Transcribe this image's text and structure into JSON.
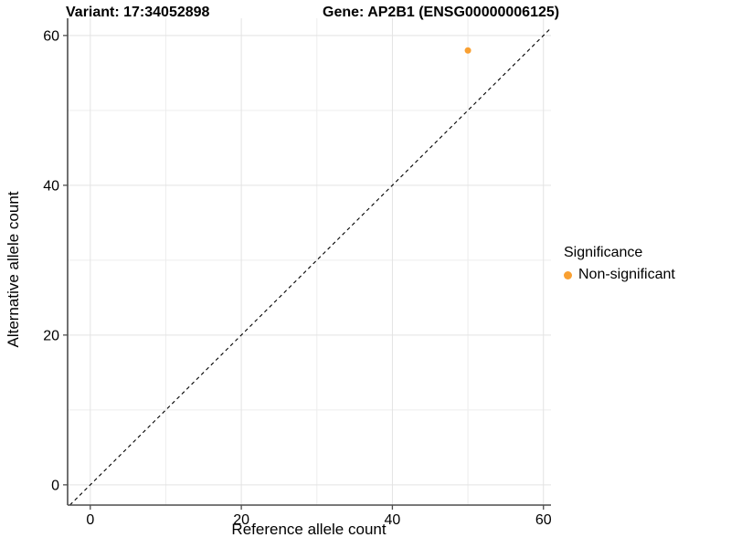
{
  "figure": {
    "title_left": "Variant: 17:34052898",
    "title_right": "Gene: AP2B1 (ENSG00000006125)"
  },
  "chart_data": {
    "type": "scatter",
    "title": "Variant: 17:34052898 — Gene: AP2B1 (ENSG00000006125)",
    "xlabel": "Reference allele count",
    "ylabel": "Alternative allele count",
    "xlim": [
      -3,
      61
    ],
    "ylim": [
      -2.7,
      62.3
    ],
    "x_ticks": [
      0,
      20,
      40,
      60
    ],
    "y_ticks": [
      0,
      20,
      40,
      60
    ],
    "x_minor_ticks": [
      10,
      30,
      50
    ],
    "y_minor_ticks": [
      10,
      30,
      50
    ],
    "grid": "major and minor, light gray on white",
    "series": [
      {
        "name": "Non-significant",
        "color": "#F9A032",
        "points": [
          {
            "x": 50,
            "y": 58
          }
        ]
      }
    ],
    "reference_line": {
      "equation": "y = x",
      "style": "dashed",
      "color": "#000000"
    },
    "legend": {
      "title": "Significance",
      "position": "right",
      "entries": [
        {
          "label": "Non-significant",
          "color": "#F9A032"
        }
      ]
    }
  },
  "colors": {
    "background": "#ffffff",
    "axis_line": "#4d4d4d",
    "grid_major": "#e3e3e3",
    "grid_minor": "#ededed",
    "text": "#000000",
    "point": "#F9A032"
  }
}
